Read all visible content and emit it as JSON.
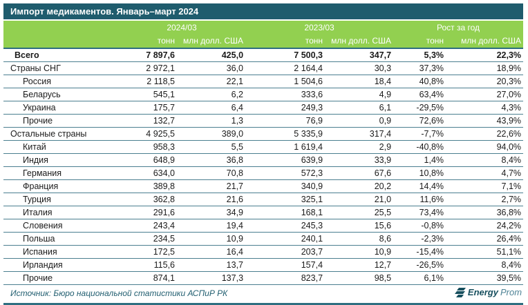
{
  "title": "Импорт медикаментов. Январь–март 2024",
  "colors": {
    "title_bar": "#1f5c6d",
    "header_green": "#92d050",
    "row_line": "#4a7e8f",
    "thick_line": "#2e6e80",
    "source_text": "#215e70",
    "logo_dark": "#174f5e",
    "logo_light": "#4e8396"
  },
  "chart_data": {
    "type": "table",
    "title": "Импорт медикаментов. Январь–март 2024",
    "column_groups": [
      "2024/03",
      "2023/03",
      "Рост за год"
    ],
    "unit_labels": {
      "tons": "тонн",
      "usd": "млн долл. США"
    },
    "columns": [
      "2024/03 тонн",
      "2024/03 млн долл. США",
      "2023/03 тонн",
      "2023/03 млн долл. США",
      "Рост за год тонн",
      "Рост за год млн долл. США"
    ],
    "rows": [
      {
        "label": "Всего",
        "level": "total",
        "bold": true,
        "values": [
          "7 897,6",
          "425,0",
          "7 500,3",
          "347,7",
          "5,3%",
          "22,3%"
        ]
      },
      {
        "label": "Страны СНГ",
        "level": "group",
        "bold": false,
        "values": [
          "2 972,1",
          "36,0",
          "2 164,4",
          "30,3",
          "37,3%",
          "18,9%"
        ]
      },
      {
        "label": "Россия",
        "level": "country",
        "bold": false,
        "values": [
          "2 118,5",
          "22,1",
          "1 504,6",
          "18,4",
          "40,8%",
          "20,3%"
        ]
      },
      {
        "label": "Беларусь",
        "level": "country",
        "bold": false,
        "values": [
          "545,1",
          "6,2",
          "333,6",
          "4,9",
          "63,4%",
          "27,0%"
        ]
      },
      {
        "label": "Украина",
        "level": "country",
        "bold": false,
        "values": [
          "175,7",
          "6,4",
          "249,3",
          "6,1",
          "-29,5%",
          "4,3%"
        ]
      },
      {
        "label": "Прочие",
        "level": "country",
        "bold": false,
        "values": [
          "132,7",
          "1,3",
          "76,9",
          "0,9",
          "72,6%",
          "43,9%"
        ]
      },
      {
        "label": "Остальные страны",
        "level": "group",
        "bold": false,
        "values": [
          "4 925,5",
          "389,0",
          "5 335,9",
          "317,4",
          "-7,7%",
          "22,6%"
        ]
      },
      {
        "label": "Китай",
        "level": "country",
        "bold": false,
        "values": [
          "958,3",
          "5,5",
          "1 619,4",
          "2,9",
          "-40,8%",
          "94,0%"
        ]
      },
      {
        "label": "Индия",
        "level": "country",
        "bold": false,
        "values": [
          "648,9",
          "36,8",
          "639,9",
          "33,9",
          "1,4%",
          "8,4%"
        ]
      },
      {
        "label": "Германия",
        "level": "country",
        "bold": false,
        "values": [
          "634,0",
          "70,8",
          "572,3",
          "67,6",
          "10,8%",
          "4,7%"
        ]
      },
      {
        "label": "Франция",
        "level": "country",
        "bold": false,
        "values": [
          "389,8",
          "21,7",
          "340,9",
          "20,2",
          "14,4%",
          "7,1%"
        ]
      },
      {
        "label": "Турция",
        "level": "country",
        "bold": false,
        "values": [
          "362,8",
          "21,6",
          "325,1",
          "21,0",
          "11,6%",
          "2,7%"
        ]
      },
      {
        "label": "Италия",
        "level": "country",
        "bold": false,
        "values": [
          "291,6",
          "34,9",
          "168,1",
          "25,5",
          "73,4%",
          "36,8%"
        ]
      },
      {
        "label": "Словения",
        "level": "country",
        "bold": false,
        "values": [
          "243,4",
          "19,4",
          "245,3",
          "15,6",
          "-0,8%",
          "24,2%"
        ]
      },
      {
        "label": "Польша",
        "level": "country",
        "bold": false,
        "values": [
          "234,5",
          "10,9",
          "240,1",
          "8,6",
          "-2,3%",
          "26,4%"
        ]
      },
      {
        "label": "Испания",
        "level": "country",
        "bold": false,
        "values": [
          "172,5",
          "16,4",
          "203,7",
          "10,9",
          "-15,4%",
          "51,1%"
        ]
      },
      {
        "label": "Ирландия",
        "level": "country",
        "bold": false,
        "values": [
          "115,6",
          "13,7",
          "157,4",
          "12,7",
          "-26,5%",
          "8,4%"
        ]
      },
      {
        "label": "Прочие",
        "level": "country",
        "bold": false,
        "values": [
          "874,1",
          "137,3",
          "823,7",
          "98,5",
          "6,1%",
          "39,5%"
        ]
      }
    ]
  },
  "footer": {
    "source": "Источник: Бюро национальной статистики АСПиР РК",
    "logo_bold": "Energy",
    "logo_light": "Prom"
  }
}
